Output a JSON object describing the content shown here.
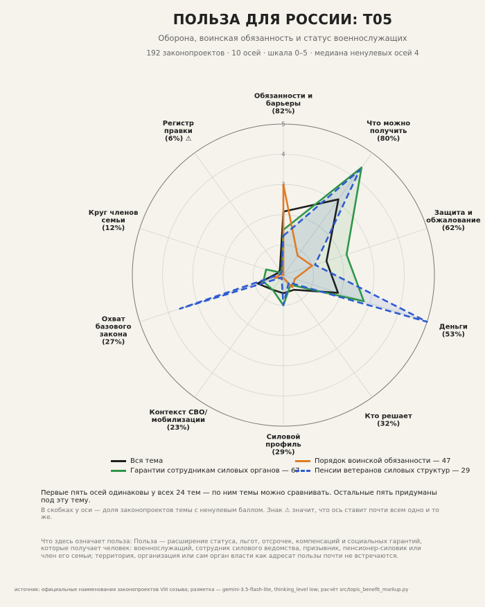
{
  "header": {
    "title": "ПОЛЬЗА ДЛЯ РОССИИ: Т05",
    "subtitle": "Оборона, воинская обязанность и статус военнослужащих",
    "meta": "192 законопроектов · 10 осей · шкала 0–5 · медиана ненулевых осей 4"
  },
  "chart_data": {
    "type": "radar",
    "scale": [
      0,
      5
    ],
    "ticks": [
      "1",
      "2",
      "3",
      "4",
      "5"
    ],
    "grid": true,
    "legend_position": "bottom",
    "axes": [
      {
        "lines": [
          "Обязанности и",
          "барьеры",
          "(82%)"
        ]
      },
      {
        "lines": [
          "Что можно",
          "получить",
          "(80%)"
        ]
      },
      {
        "lines": [
          "Защита и",
          "обжалование",
          "(62%)"
        ]
      },
      {
        "lines": [
          "Деньги",
          "(53%)"
        ]
      },
      {
        "lines": [
          "Кто решает",
          "(32%)"
        ]
      },
      {
        "lines": [
          "Силовой",
          "профиль",
          "(29%)"
        ]
      },
      {
        "lines": [
          "Контекст СВО/",
          "мобилизации",
          "(23%)"
        ]
      },
      {
        "lines": [
          "Охват",
          "базового",
          "закона",
          "(27%)"
        ]
      },
      {
        "lines": [
          "Круг членов",
          "семьи",
          "(12%)"
        ]
      },
      {
        "lines": [
          "Регистр",
          "правки",
          "(6%)  ⚠"
        ]
      }
    ],
    "series": [
      {
        "name": "Вся тема",
        "color": "#1f1f1f",
        "dash": false,
        "fill": false,
        "values": [
          2.1,
          3.1,
          1.5,
          1.9,
          0.6,
          0.6,
          0.6,
          0.9,
          0.2,
          0.2
        ]
      },
      {
        "name": "Гарантии сотрудникам силовых органов — 67",
        "color": "#2e9649",
        "dash": false,
        "fill": true,
        "values": [
          1.5,
          4.4,
          2.2,
          2.8,
          0.4,
          1.0,
          0.6,
          0.7,
          0.6,
          0.1
        ]
      },
      {
        "name": "Порядок воинской обязанности — 47",
        "color": "#e07b24",
        "dash": false,
        "fill": false,
        "values": [
          3.0,
          0.8,
          1.0,
          0.4,
          0.5,
          0.1,
          0.1,
          0.3,
          0.1,
          0.0
        ]
      },
      {
        "name": "Пенсии ветеранов силовых структур — 29",
        "color": "#2e5bd1",
        "dash": true,
        "fill": true,
        "values": [
          1.3,
          4.3,
          1.1,
          5.0,
          0.3,
          1.0,
          0.1,
          3.6,
          0.1,
          0.1
        ]
      }
    ]
  },
  "legend": {
    "items": [
      {
        "label": "Вся тема",
        "color": "#1f1f1f",
        "dash": false
      },
      {
        "label": "Порядок воинской обязанности — 47",
        "color": "#e07b24",
        "dash": false
      },
      {
        "label": "Гарантии сотрудникам силовых органов — 67",
        "color": "#2e9649",
        "dash": false
      },
      {
        "label": "Пенсии ветеранов силовых структур — 29",
        "color": "#2e5bd1",
        "dash": true
      }
    ]
  },
  "notes": {
    "note1": "Первые пять осей одинаковы у всех 24 тем — по ним темы можно сравнивать. Остальные пять придуманы под эту тему.",
    "note2": "В скобках у оси — доля законопроектов темы с ненулевым баллом. Знак ⚠ значит, что ось ставит почти всем одно и то же.",
    "note3": "Что здесь означает польза: Польза — расширение статуса, льгот, отсрочек, компенсаций и социальных гарантий, которые получает человек: военнослужащий, сотрудник силового ведомства, призывник, пенсионер-силовик или член его семьи; территория, организация или сам орган власти как адресат пользы почти не встречаются.",
    "source": "источник: официальные наименования законопроектов VIII созыва; разметка — gemini-3.5-flash-lite, thinking_level low; расчёт src/topic_benefit_markup.py"
  }
}
